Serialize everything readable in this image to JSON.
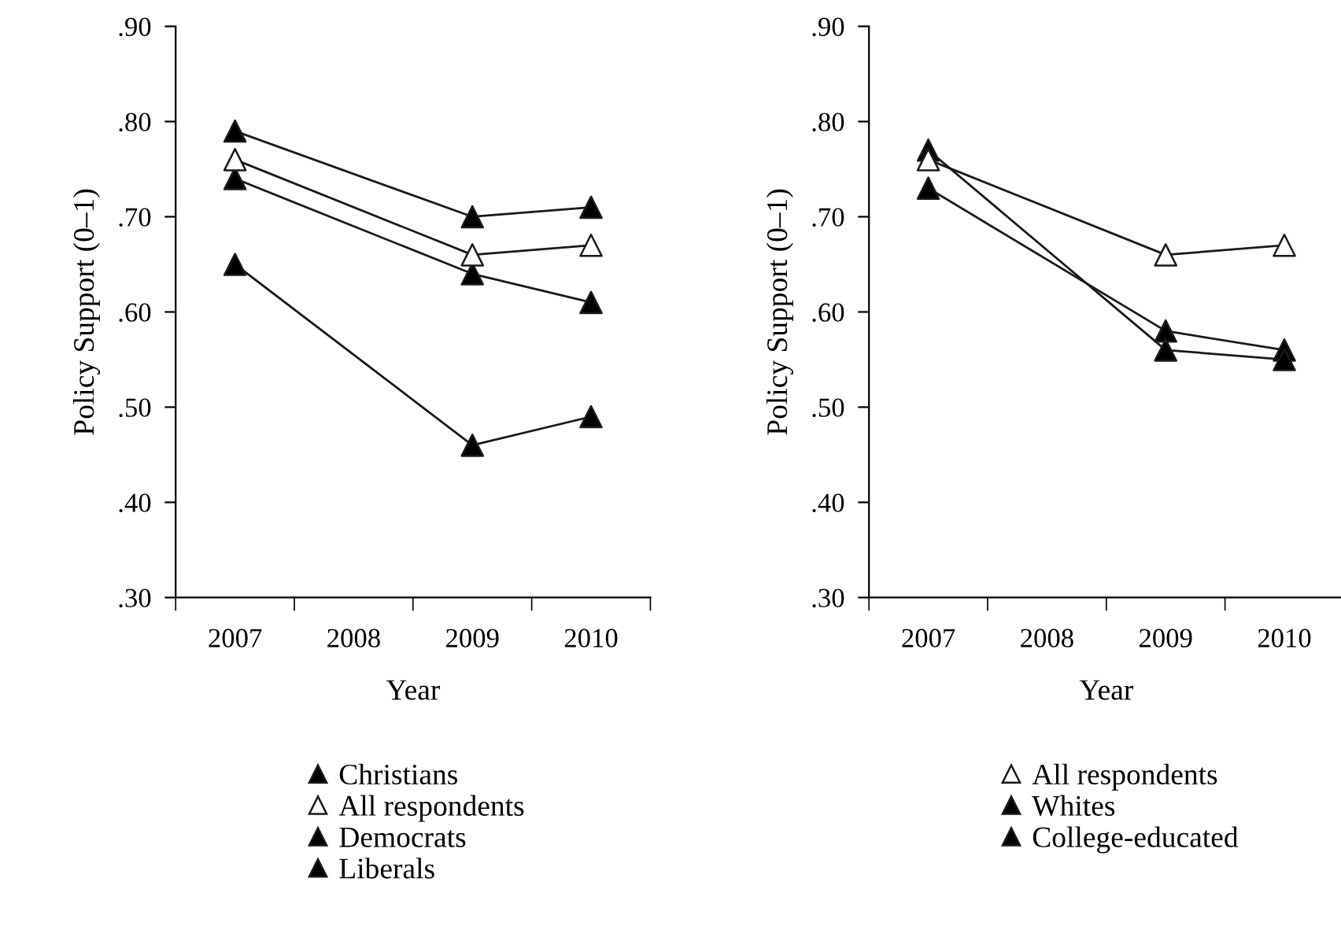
{
  "chart_data": [
    {
      "type": "line",
      "xlabel": "Year",
      "ylabel": "Policy Support (0–1)",
      "categories": [
        "2007",
        "2008",
        "2009",
        "2010"
      ],
      "ylim": [
        0.3,
        0.9
      ],
      "yticks": [
        {
          "value": 0.3,
          "label": ".30"
        },
        {
          "value": 0.4,
          "label": ".40"
        },
        {
          "value": 0.5,
          "label": ".50"
        },
        {
          "value": 0.6,
          "label": ".60"
        },
        {
          "value": 0.7,
          "label": ".70"
        },
        {
          "value": 0.8,
          "label": ".80"
        },
        {
          "value": 0.9,
          "label": ".90"
        }
      ],
      "marker": "triangle",
      "line_style": "solid",
      "grid": false,
      "legend": "bottom",
      "series": [
        {
          "name": "Christians",
          "color": "#000000",
          "values": [
            0.79,
            null,
            0.7,
            0.71
          ]
        },
        {
          "name": "All respondents",
          "color": "#ffffff",
          "values": [
            0.76,
            null,
            0.66,
            0.67
          ]
        },
        {
          "name": "Democrats",
          "color": "#000000",
          "values": [
            0.74,
            null,
            0.64,
            0.61
          ]
        },
        {
          "name": "Liberals",
          "color": "#000000",
          "values": [
            0.65,
            null,
            0.46,
            0.49
          ]
        }
      ]
    },
    {
      "type": "line",
      "xlabel": "Year",
      "ylabel": "Policy Support (0–1)",
      "categories": [
        "2007",
        "2008",
        "2009",
        "2010"
      ],
      "ylim": [
        0.3,
        0.9
      ],
      "yticks": [
        {
          "value": 0.3,
          "label": ".30"
        },
        {
          "value": 0.4,
          "label": ".40"
        },
        {
          "value": 0.5,
          "label": ".50"
        },
        {
          "value": 0.6,
          "label": ".60"
        },
        {
          "value": 0.7,
          "label": ".70"
        },
        {
          "value": 0.8,
          "label": ".80"
        },
        {
          "value": 0.9,
          "label": ".90"
        }
      ],
      "marker": "triangle",
      "line_style": "solid",
      "grid": false,
      "legend": "bottom",
      "series": [
        {
          "name": "All respondents",
          "color": "#ffffff",
          "values": [
            0.76,
            null,
            0.66,
            0.67
          ]
        },
        {
          "name": "Whites",
          "color": "#000000",
          "values": [
            0.77,
            null,
            0.56,
            0.55
          ]
        },
        {
          "name": "College-educated",
          "color": "#000000",
          "values": [
            0.73,
            null,
            0.58,
            0.56
          ]
        }
      ]
    }
  ]
}
